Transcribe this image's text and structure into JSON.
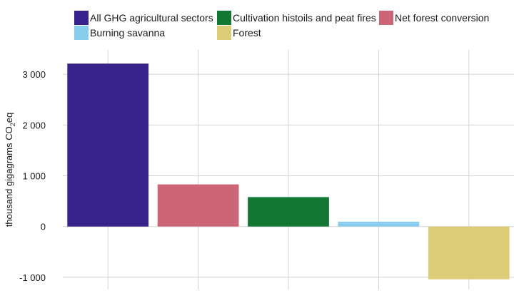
{
  "chart_data": {
    "type": "bar",
    "categories": [
      "All GHG agricultural sectors",
      "Net forest conversion",
      "Cultivation histoils and peat fires",
      "Burning savanna",
      "Forest"
    ],
    "values": [
      3210,
      830,
      580,
      95,
      -1040
    ],
    "colors": [
      "#36228a",
      "#cc6677",
      "#117733",
      "#88ccee",
      "#ddcc77"
    ],
    "ylabel": {
      "pre": "thousand gigagrams CO",
      "sub": "2",
      "post": "eq"
    },
    "yticks": [
      -1000,
      0,
      1000,
      2000,
      3000
    ],
    "ytick_labels": [
      "-1 000",
      "0",
      "1 000",
      "2 000",
      "3 000"
    ],
    "ylim": [
      -1240,
      3480
    ],
    "grid": true,
    "legend": {
      "placement": "top",
      "entries": [
        {
          "label": "All GHG agricultural sectors",
          "color": "#36228a"
        },
        {
          "label": "Cultivation histoils and peat fires",
          "color": "#117733"
        },
        {
          "label": "Net forest conversion",
          "color": "#cc6677"
        },
        {
          "label": "Burning savanna",
          "color": "#88ccee"
        },
        {
          "label": "Forest",
          "color": "#ddcc77"
        }
      ]
    }
  }
}
